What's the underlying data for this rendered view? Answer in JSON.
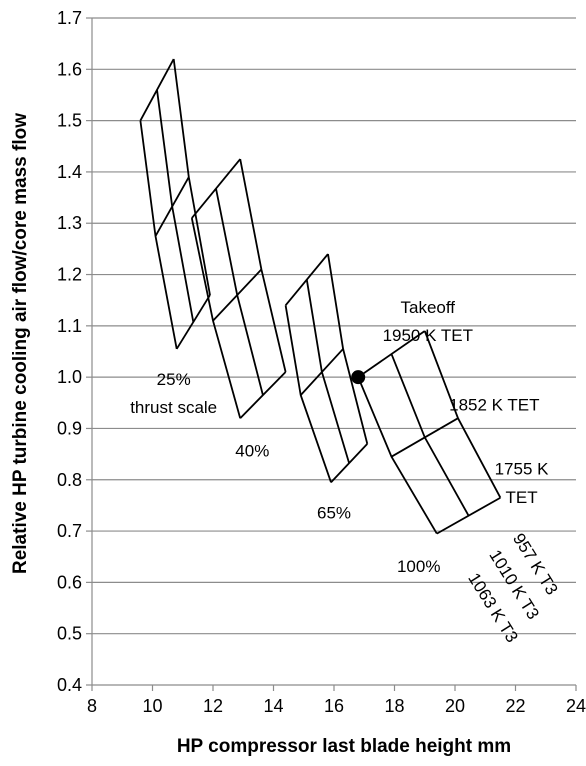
{
  "chart_data": {
    "type": "line",
    "title": "",
    "xlabel": "HP compressor last blade height  mm",
    "ylabel": "Relative HP turbine cooling air flow/core mass flow",
    "xlim": [
      8,
      24
    ],
    "ylim": [
      0.4,
      1.7
    ],
    "xticks": [
      "8",
      "10",
      "12",
      "14",
      "16",
      "18",
      "20",
      "22",
      "24"
    ],
    "yticks": [
      "0.4",
      "0.5",
      "0.6",
      "0.7",
      "0.8",
      "0.9",
      "1.0",
      "1.1",
      "1.2",
      "1.3",
      "1.4",
      "1.5",
      "1.6",
      "1.7"
    ],
    "grid": "horizontal",
    "carpets": [
      {
        "name": "25%",
        "rows": [
          [
            [
              9.6,
              1.5
            ],
            [
              10.7,
              1.62
            ]
          ],
          [
            [
              10.1,
              1.275
            ],
            [
              11.2,
              1.39
            ]
          ],
          [
            [
              10.8,
              1.055
            ],
            [
              11.9,
              1.16
            ]
          ]
        ]
      },
      {
        "name": "40%",
        "rows": [
          [
            [
              11.3,
              1.31
            ],
            [
              12.9,
              1.425
            ]
          ],
          [
            [
              12.0,
              1.11
            ],
            [
              13.6,
              1.21
            ]
          ],
          [
            [
              12.9,
              0.92
            ],
            [
              14.4,
              1.01
            ]
          ]
        ]
      },
      {
        "name": "65%",
        "rows": [
          [
            [
              14.4,
              1.14
            ],
            [
              15.8,
              1.24
            ]
          ],
          [
            [
              14.9,
              0.965
            ],
            [
              16.3,
              1.055
            ]
          ],
          [
            [
              15.9,
              0.795
            ],
            [
              17.1,
              0.87
            ]
          ]
        ]
      },
      {
        "name": "100%",
        "rows": [
          [
            [
              16.8,
              1.0
            ],
            [
              19.0,
              1.09
            ]
          ],
          [
            [
              17.9,
              0.845
            ],
            [
              20.1,
              0.92
            ]
          ],
          [
            [
              19.4,
              0.695
            ],
            [
              21.5,
              0.765
            ]
          ]
        ]
      }
    ],
    "marker": {
      "x": 16.8,
      "y": 1.0
    },
    "annotations": [
      {
        "id": "takeoff",
        "text": "Takeoff",
        "x": 19.1,
        "y": 1.125
      },
      {
        "id": "tet1950",
        "text": "1950 K TET",
        "x": 19.1,
        "y": 1.07
      },
      {
        "id": "tet1852",
        "text": "1852 K TET",
        "x": 21.3,
        "y": 0.935
      },
      {
        "id": "tet1755a",
        "text": "1755 K",
        "x": 22.2,
        "y": 0.81
      },
      {
        "id": "tet1755b",
        "text": "TET",
        "x": 22.2,
        "y": 0.755
      },
      {
        "id": "thrust25",
        "text": "25%",
        "x": 10.7,
        "y": 0.985
      },
      {
        "id": "thrustscale",
        "text": "thrust scale",
        "x": 10.7,
        "y": 0.93
      },
      {
        "id": "thrust40",
        "text": "40%",
        "x": 13.3,
        "y": 0.845
      },
      {
        "id": "thrust65",
        "text": "65%",
        "x": 16.0,
        "y": 0.725
      },
      {
        "id": "thrust100",
        "text": "100%",
        "x": 18.8,
        "y": 0.62
      }
    ],
    "rotated_labels": [
      {
        "id": "t3957",
        "text": "957 K T3",
        "x": 22.5,
        "y": 0.63,
        "angle": 58
      },
      {
        "id": "t31010",
        "text": "1010 K T3",
        "x": 21.8,
        "y": 0.59,
        "angle": 58
      },
      {
        "id": "t31063",
        "text": "1063 K T3",
        "x": 21.1,
        "y": 0.545,
        "angle": 58
      }
    ]
  }
}
